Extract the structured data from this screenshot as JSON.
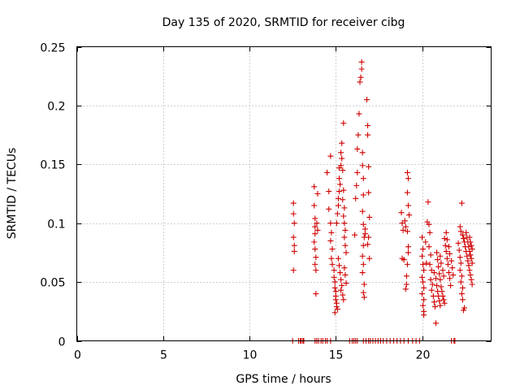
{
  "chart_data": {
    "type": "scatter",
    "title": "Day 135 of 2020, SRMTID for receiver cibg",
    "xlabel": "GPS time / hours",
    "ylabel": "SRMTID / TECUs",
    "xlim": [
      0,
      24
    ],
    "ylim": [
      0,
      0.25
    ],
    "x_ticks": [
      0,
      5,
      10,
      15,
      20
    ],
    "x_tick_labels": [
      "0",
      "5",
      "10",
      "15",
      "20"
    ],
    "y_ticks": [
      0,
      0.05,
      0.1,
      0.15,
      0.2,
      0.25
    ],
    "y_tick_labels": [
      "0",
      "0.05",
      "0.1",
      "0.15",
      "0.2",
      "0.25"
    ],
    "grid": true,
    "marker": "+",
    "colors": {
      "points": "#d00000",
      "frame": "#000000",
      "grid": "#a0a0a0"
    },
    "series": [
      {
        "name": "SRMTID",
        "points": [
          [
            12.55,
            0.117
          ],
          [
            12.55,
            0.108
          ],
          [
            12.6,
            0.1
          ],
          [
            12.55,
            0.088
          ],
          [
            12.6,
            0.081
          ],
          [
            12.6,
            0.076
          ],
          [
            12.55,
            0.06
          ],
          [
            13.75,
            0.131
          ],
          [
            13.75,
            0.115
          ],
          [
            13.8,
            0.104
          ],
          [
            13.8,
            0.097
          ],
          [
            13.8,
            0.091
          ],
          [
            13.75,
            0.084
          ],
          [
            13.8,
            0.078
          ],
          [
            13.85,
            0.071
          ],
          [
            13.8,
            0.065
          ],
          [
            13.85,
            0.06
          ],
          [
            13.85,
            0.04
          ],
          [
            13.9,
            0.1
          ],
          [
            13.95,
            0.094
          ],
          [
            13.95,
            0.125
          ],
          [
            14.5,
            0.143
          ],
          [
            14.6,
            0.127
          ],
          [
            14.6,
            0.112
          ],
          [
            14.7,
            0.157
          ],
          [
            14.7,
            0.1
          ],
          [
            14.75,
            0.092
          ],
          [
            14.7,
            0.085
          ],
          [
            14.8,
            0.078
          ],
          [
            14.75,
            0.07
          ],
          [
            14.8,
            0.065
          ],
          [
            14.9,
            0.06
          ],
          [
            14.9,
            0.054
          ],
          [
            14.95,
            0.05
          ],
          [
            14.95,
            0.045
          ],
          [
            15.0,
            0.042
          ],
          [
            15.0,
            0.038
          ],
          [
            15.0,
            0.035
          ],
          [
            15.05,
            0.032
          ],
          [
            15.05,
            0.029
          ],
          [
            15.1,
            0.027
          ],
          [
            14.95,
            0.024
          ],
          [
            15.05,
            0.1
          ],
          [
            15.1,
            0.108
          ],
          [
            15.15,
            0.115
          ],
          [
            15.15,
            0.121
          ],
          [
            15.2,
            0.127
          ],
          [
            15.25,
            0.133
          ],
          [
            15.2,
            0.138
          ],
          [
            15.2,
            0.147
          ],
          [
            15.3,
            0.149
          ],
          [
            15.3,
            0.16
          ],
          [
            15.35,
            0.168
          ],
          [
            15.45,
            0.185
          ],
          [
            15.35,
            0.155
          ],
          [
            15.4,
            0.145
          ],
          [
            15.45,
            0.128
          ],
          [
            15.4,
            0.12
          ],
          [
            15.5,
            0.113
          ],
          [
            15.45,
            0.106
          ],
          [
            15.5,
            0.1
          ],
          [
            15.55,
            0.094
          ],
          [
            15.5,
            0.088
          ],
          [
            15.55,
            0.081
          ],
          [
            15.6,
            0.075
          ],
          [
            15.15,
            0.07
          ],
          [
            15.2,
            0.064
          ],
          [
            15.25,
            0.058
          ],
          [
            15.3,
            0.052
          ],
          [
            15.35,
            0.047
          ],
          [
            15.3,
            0.043
          ],
          [
            15.4,
            0.039
          ],
          [
            15.45,
            0.035
          ],
          [
            15.5,
            0.062
          ],
          [
            15.55,
            0.056
          ],
          [
            15.6,
            0.049
          ],
          [
            16.1,
            0.09
          ],
          [
            16.15,
            0.121
          ],
          [
            16.2,
            0.132
          ],
          [
            16.25,
            0.143
          ],
          [
            16.25,
            0.163
          ],
          [
            16.3,
            0.175
          ],
          [
            16.35,
            0.193
          ],
          [
            16.4,
            0.22
          ],
          [
            16.45,
            0.224
          ],
          [
            16.5,
            0.237
          ],
          [
            16.5,
            0.231
          ],
          [
            16.55,
            0.16
          ],
          [
            16.55,
            0.149
          ],
          [
            16.6,
            0.138
          ],
          [
            16.6,
            0.124
          ],
          [
            16.55,
            0.11
          ],
          [
            16.6,
            0.099
          ],
          [
            16.65,
            0.088
          ],
          [
            16.6,
            0.081
          ],
          [
            16.55,
            0.072
          ],
          [
            16.6,
            0.065
          ],
          [
            16.55,
            0.058
          ],
          [
            16.65,
            0.048
          ],
          [
            16.6,
            0.041
          ],
          [
            16.65,
            0.037
          ],
          [
            16.7,
            0.095
          ],
          [
            16.7,
            0.091
          ],
          [
            16.8,
            0.205
          ],
          [
            16.85,
            0.183
          ],
          [
            16.85,
            0.175
          ],
          [
            16.9,
            0.148
          ],
          [
            16.9,
            0.126
          ],
          [
            16.95,
            0.105
          ],
          [
            16.9,
            0.088
          ],
          [
            16.85,
            0.082
          ],
          [
            16.95,
            0.07
          ],
          [
            18.8,
            0.109
          ],
          [
            18.85,
            0.1
          ],
          [
            18.9,
            0.094
          ],
          [
            18.85,
            0.07
          ],
          [
            18.95,
            0.069
          ],
          [
            19.0,
            0.102
          ],
          [
            19.05,
            0.097
          ],
          [
            19.15,
            0.143
          ],
          [
            19.2,
            0.138
          ],
          [
            19.15,
            0.126
          ],
          [
            19.2,
            0.115
          ],
          [
            19.25,
            0.107
          ],
          [
            19.15,
            0.093
          ],
          [
            19.2,
            0.08
          ],
          [
            19.2,
            0.075
          ],
          [
            19.15,
            0.065
          ],
          [
            19.1,
            0.055
          ],
          [
            19.1,
            0.048
          ],
          [
            19.05,
            0.044
          ],
          [
            20.0,
            0.088
          ],
          [
            20.05,
            0.078
          ],
          [
            20.0,
            0.072
          ],
          [
            20.05,
            0.065
          ],
          [
            20.1,
            0.06
          ],
          [
            20.0,
            0.054
          ],
          [
            20.05,
            0.05
          ],
          [
            20.1,
            0.045
          ],
          [
            20.0,
            0.04
          ],
          [
            20.1,
            0.035
          ],
          [
            20.05,
            0.03
          ],
          [
            20.1,
            0.025
          ],
          [
            20.1,
            0.022
          ],
          [
            20.2,
            0.084
          ],
          [
            20.25,
            0.066
          ],
          [
            20.3,
            0.101
          ],
          [
            20.35,
            0.118
          ],
          [
            20.4,
            0.099
          ],
          [
            20.45,
            0.092
          ],
          [
            20.4,
            0.08
          ],
          [
            20.5,
            0.073
          ],
          [
            20.45,
            0.065
          ],
          [
            20.55,
            0.06
          ],
          [
            20.5,
            0.052
          ],
          [
            20.6,
            0.048
          ],
          [
            20.55,
            0.043
          ],
          [
            20.65,
            0.038
          ],
          [
            20.7,
            0.033
          ],
          [
            20.75,
            0.029
          ],
          [
            20.8,
            0.015
          ],
          [
            20.7,
            0.058
          ],
          [
            20.8,
            0.053
          ],
          [
            20.85,
            0.047
          ],
          [
            20.9,
            0.042
          ],
          [
            20.95,
            0.038
          ],
          [
            21.0,
            0.034
          ],
          [
            21.05,
            0.03
          ],
          [
            20.85,
            0.075
          ],
          [
            20.9,
            0.069
          ],
          [
            20.95,
            0.063
          ],
          [
            21.0,
            0.057
          ],
          [
            21.05,
            0.052
          ],
          [
            21.1,
            0.046
          ],
          [
            21.15,
            0.042
          ],
          [
            21.2,
            0.038
          ],
          [
            21.25,
            0.035
          ],
          [
            21.3,
            0.032
          ],
          [
            21.05,
            0.072
          ],
          [
            21.1,
            0.066
          ],
          [
            21.2,
            0.06
          ],
          [
            21.25,
            0.055
          ],
          [
            21.3,
            0.087
          ],
          [
            21.35,
            0.081
          ],
          [
            21.4,
            0.076
          ],
          [
            21.45,
            0.07
          ],
          [
            21.5,
            0.065
          ],
          [
            21.55,
            0.058
          ],
          [
            21.6,
            0.053
          ],
          [
            21.65,
            0.047
          ],
          [
            21.4,
            0.092
          ],
          [
            21.45,
            0.086
          ],
          [
            21.55,
            0.08
          ],
          [
            21.6,
            0.074
          ],
          [
            21.7,
            0.068
          ],
          [
            21.75,
            0.062
          ],
          [
            21.8,
            0.056
          ],
          [
            22.1,
            0.083
          ],
          [
            22.15,
            0.077
          ],
          [
            22.2,
            0.071
          ],
          [
            22.25,
            0.066
          ],
          [
            22.2,
            0.06
          ],
          [
            22.3,
            0.055
          ],
          [
            22.25,
            0.05
          ],
          [
            22.35,
            0.045
          ],
          [
            22.3,
            0.04
          ],
          [
            22.35,
            0.035
          ],
          [
            22.4,
            0.026
          ],
          [
            22.45,
            0.028
          ],
          [
            22.2,
            0.097
          ],
          [
            22.25,
            0.093
          ],
          [
            22.3,
            0.117
          ],
          [
            22.35,
            0.09
          ],
          [
            22.4,
            0.087
          ],
          [
            22.45,
            0.084
          ],
          [
            22.5,
            0.08
          ],
          [
            22.55,
            0.076
          ],
          [
            22.6,
            0.072
          ],
          [
            22.65,
            0.068
          ],
          [
            22.7,
            0.064
          ],
          [
            22.75,
            0.06
          ],
          [
            22.8,
            0.056
          ],
          [
            22.85,
            0.052
          ],
          [
            22.9,
            0.048
          ],
          [
            22.55,
            0.092
          ],
          [
            22.6,
            0.088
          ],
          [
            22.65,
            0.084
          ],
          [
            22.7,
            0.08
          ],
          [
            22.75,
            0.076
          ],
          [
            22.8,
            0.073
          ],
          [
            22.85,
            0.07
          ],
          [
            22.9,
            0.066
          ],
          [
            22.75,
            0.088
          ],
          [
            22.8,
            0.084
          ],
          [
            22.85,
            0.081
          ],
          [
            22.9,
            0.078
          ],
          [
            12.5,
            0
          ],
          [
            12.85,
            0
          ],
          [
            12.95,
            0
          ],
          [
            13.0,
            0
          ],
          [
            13.1,
            0
          ],
          [
            13.15,
            0
          ],
          [
            13.8,
            0
          ],
          [
            13.9,
            0
          ],
          [
            14.0,
            0
          ],
          [
            14.15,
            0
          ],
          [
            14.25,
            0
          ],
          [
            14.4,
            0
          ],
          [
            14.5,
            0
          ],
          [
            14.7,
            0
          ],
          [
            15.8,
            0
          ],
          [
            15.95,
            0
          ],
          [
            16.05,
            0
          ],
          [
            16.15,
            0
          ],
          [
            16.25,
            0
          ],
          [
            16.6,
            0
          ],
          [
            16.75,
            0
          ],
          [
            16.9,
            0
          ],
          [
            17.0,
            0
          ],
          [
            17.15,
            0
          ],
          [
            17.3,
            0
          ],
          [
            17.45,
            0
          ],
          [
            17.6,
            0
          ],
          [
            17.75,
            0
          ],
          [
            17.95,
            0
          ],
          [
            18.15,
            0
          ],
          [
            18.35,
            0
          ],
          [
            18.55,
            0
          ],
          [
            18.75,
            0
          ],
          [
            18.95,
            0
          ],
          [
            19.2,
            0
          ],
          [
            19.45,
            0
          ],
          [
            19.65,
            0
          ],
          [
            19.85,
            0
          ],
          [
            21.7,
            0
          ],
          [
            21.85,
            0
          ],
          [
            21.9,
            0
          ]
        ]
      }
    ]
  }
}
